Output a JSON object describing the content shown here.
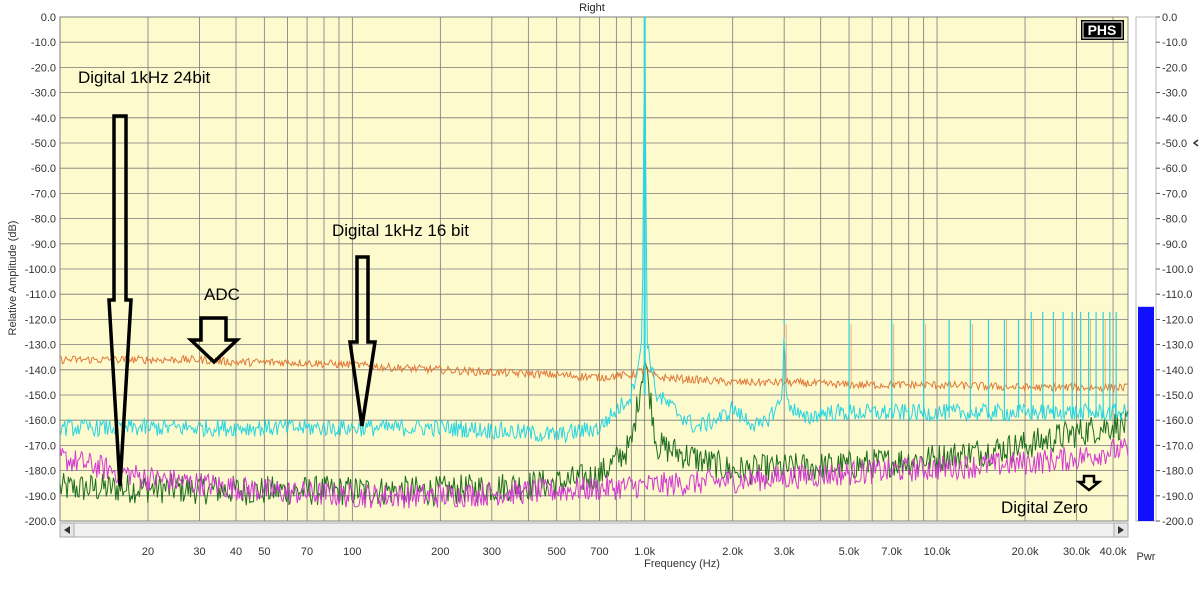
{
  "chart_data": {
    "type": "line",
    "title": "Right",
    "xlabel": "Frequency (Hz)",
    "ylabel": "Relative Amplitude (dB)",
    "x_scale": "log",
    "xlim": [
      10,
      45000
    ],
    "ylim": [
      -200,
      0
    ],
    "grid": true,
    "x_tick_labels": [
      {
        "v": 20,
        "t": "20"
      },
      {
        "v": 30,
        "t": "30"
      },
      {
        "v": 40,
        "t": "40"
      },
      {
        "v": 50,
        "t": "50"
      },
      {
        "v": 70,
        "t": "70"
      },
      {
        "v": 100,
        "t": "100"
      },
      {
        "v": 200,
        "t": "200"
      },
      {
        "v": 300,
        "t": "300"
      },
      {
        "v": 500,
        "t": "500"
      },
      {
        "v": 700,
        "t": "700"
      },
      {
        "v": 1000,
        "t": "1.0k"
      },
      {
        "v": 2000,
        "t": "2.0k"
      },
      {
        "v": 3000,
        "t": "3.0k"
      },
      {
        "v": 5000,
        "t": "5.0k"
      },
      {
        "v": 7000,
        "t": "7.0k"
      },
      {
        "v": 10000,
        "t": "10.0k"
      },
      {
        "v": 20000,
        "t": "20.0k"
      },
      {
        "v": 30000,
        "t": "30.0k"
      },
      {
        "v": 40000,
        "t": "40.0k"
      }
    ],
    "y_tick_labels": [
      {
        "v": 0,
        "t": "0.0"
      },
      {
        "v": -10,
        "t": "-10.0"
      },
      {
        "v": -20,
        "t": "-20.0"
      },
      {
        "v": -30,
        "t": "-30.0"
      },
      {
        "v": -40,
        "t": "-40.0"
      },
      {
        "v": -50,
        "t": "-50.0"
      },
      {
        "v": -60,
        "t": "-60.0"
      },
      {
        "v": -70,
        "t": "-70.0"
      },
      {
        "v": -80,
        "t": "-80.0"
      },
      {
        "v": -90,
        "t": "-90.0"
      },
      {
        "v": -100,
        "t": "-100.0"
      },
      {
        "v": -110,
        "t": "-110.0"
      },
      {
        "v": -120,
        "t": "-120.0"
      },
      {
        "v": -130,
        "t": "-130.0"
      },
      {
        "v": -140,
        "t": "-140.0"
      },
      {
        "v": -150,
        "t": "-150.0"
      },
      {
        "v": -160,
        "t": "-160.0"
      },
      {
        "v": -170,
        "t": "-170.0"
      },
      {
        "v": -180,
        "t": "-180.0"
      },
      {
        "v": -190,
        "t": "-190.0"
      },
      {
        "v": -200,
        "t": "-200.0"
      }
    ],
    "series": [
      {
        "key": "adc",
        "color": "#e07a3a",
        "x": [
          10,
          12,
          15,
          20,
          30,
          40,
          60,
          100,
          130,
          200,
          300,
          500,
          700,
          900,
          1000,
          1100,
          1500,
          2000,
          3000,
          5000,
          7000,
          10000,
          20000,
          30000,
          40000
        ],
        "y": [
          -136,
          -136,
          -136,
          -136,
          -136,
          -137,
          -137,
          -138,
          -139,
          -140,
          -141,
          -142,
          -143,
          -142,
          -140,
          -143,
          -144,
          -145,
          -145,
          -146,
          -146,
          -146,
          -147,
          -147,
          -147
        ]
      },
      {
        "key": "digital_16bit",
        "color": "#2ad4e0",
        "x": [
          10,
          15,
          20,
          30,
          50,
          100,
          200,
          300,
          500,
          700,
          900,
          980,
          1000,
          1020,
          1100,
          1500,
          1900,
          2000,
          2100,
          2500,
          2950,
          3000,
          3050,
          3500,
          4000,
          5000,
          6000,
          7000,
          8000,
          9000,
          10000,
          15000,
          20000,
          30000,
          40000
        ],
        "y": [
          -163,
          -163,
          -163,
          -163,
          -163,
          -163,
          -163,
          -164,
          -166,
          -163,
          -150,
          -130,
          0,
          -130,
          -150,
          -163,
          -158,
          -155,
          -158,
          -163,
          -152,
          -120,
          -152,
          -160,
          -157,
          -157,
          -157,
          -157,
          -157,
          -157,
          -157,
          -157,
          -157,
          -157,
          -157
        ]
      },
      {
        "key": "digital_24bit",
        "color": "#1e6e1e",
        "x": [
          10,
          20,
          50,
          100,
          200,
          500,
          700,
          900,
          1000,
          1100,
          2000,
          5000,
          10000,
          20000,
          30000,
          40000
        ],
        "y": [
          -187,
          -187,
          -188,
          -188,
          -188,
          -185,
          -182,
          -170,
          -135,
          -170,
          -180,
          -178,
          -175,
          -170,
          -165,
          -162
        ]
      },
      {
        "key": "digital_zero",
        "color": "#d23ad2",
        "x": [
          10,
          20,
          50,
          100,
          200,
          500,
          1000,
          2000,
          5000,
          10000,
          20000,
          30000,
          40000
        ],
        "y": [
          -175,
          -183,
          -188,
          -190,
          -190,
          -188,
          -186,
          -184,
          -181,
          -179,
          -177,
          -175,
          -172
        ]
      }
    ],
    "harmonics_16bit": [
      {
        "f": 2000,
        "db": -155
      },
      {
        "f": 3000,
        "db": -120
      },
      {
        "f": 4000,
        "db": -155
      },
      {
        "f": 5000,
        "db": -120
      },
      {
        "f": 6000,
        "db": -155
      },
      {
        "f": 7000,
        "db": -120
      },
      {
        "f": 8000,
        "db": -155
      },
      {
        "f": 9000,
        "db": -120
      },
      {
        "f": 11000,
        "db": -120
      },
      {
        "f": 13000,
        "db": -120
      },
      {
        "f": 15000,
        "db": -120
      },
      {
        "f": 17000,
        "db": -120
      },
      {
        "f": 19000,
        "db": -120
      },
      {
        "f": 21000,
        "db": -117
      },
      {
        "f": 23000,
        "db": -117
      },
      {
        "f": 25000,
        "db": -117
      },
      {
        "f": 27000,
        "db": -117
      },
      {
        "f": 29000,
        "db": -117
      },
      {
        "f": 31000,
        "db": -117
      },
      {
        "f": 33000,
        "db": -117
      },
      {
        "f": 35000,
        "db": -117
      },
      {
        "f": 37000,
        "db": -117
      },
      {
        "f": 39000,
        "db": -117
      },
      {
        "f": 41000,
        "db": -117
      }
    ],
    "harmonics_adc": [
      {
        "f": 3000,
        "db": -122
      },
      {
        "f": 5000,
        "db": -122
      },
      {
        "f": 7000,
        "db": -122
      },
      {
        "f": 9000,
        "db": -122
      },
      {
        "f": 13000,
        "db": -122
      },
      {
        "f": 17000,
        "db": -120
      },
      {
        "f": 21000,
        "db": -120
      },
      {
        "f": 25000,
        "db": -120
      },
      {
        "f": 29000,
        "db": -120
      },
      {
        "f": 33000,
        "db": -120
      },
      {
        "f": 37000,
        "db": -120
      }
    ],
    "annotations": [
      {
        "text": "Digital 1kHz 24bit"
      },
      {
        "text": "Digital 1kHz 16 bit"
      },
      {
        "text": "ADC"
      },
      {
        "text": "Digital Zero"
      }
    ],
    "logo": "PHS",
    "meter": {
      "label": "Pwr",
      "level_db": -115,
      "color": "#1010ff",
      "tick_labels": [
        "0.0",
        "-10.0",
        "-20.0",
        "-30.0",
        "-40.0",
        "-50.0",
        "-60.0",
        "-70.0",
        "-80.0",
        "-90.0",
        "-100.0",
        "-110.0",
        "-120.0",
        "-130.0",
        "-140.0",
        "-150.0",
        "-160.0",
        "-170.0",
        "-180.0",
        "-190.0",
        "-200.0"
      ]
    },
    "colors": {
      "plot_bg": "#fdfacd",
      "grid": "#7a7a7a"
    }
  }
}
